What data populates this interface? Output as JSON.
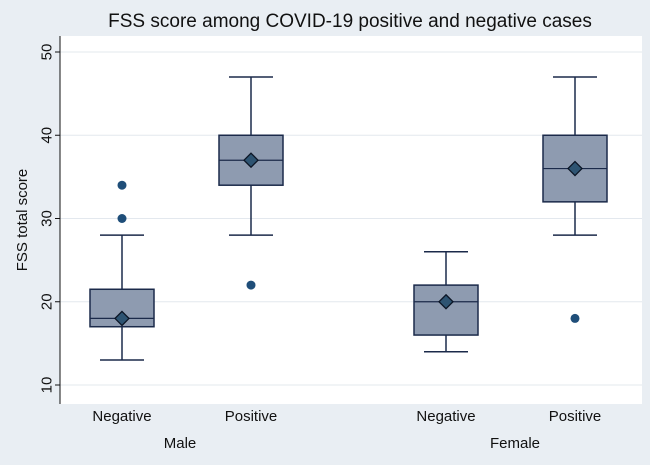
{
  "chart_data": {
    "type": "box",
    "title": "FSS score among COVID-19 positive and negative cases",
    "ylabel": "FSS total score",
    "xlabel": "",
    "ylim": [
      10,
      50
    ],
    "yticks": [
      10,
      20,
      30,
      40,
      50
    ],
    "grid": true,
    "groups": [
      {
        "name": "Male",
        "boxes": [
          {
            "label": "Negative",
            "whisker_low": 13,
            "q1": 17,
            "median": 18,
            "q3": 21.5,
            "whisker_high": 28,
            "mean": 18,
            "outliers": [
              30,
              34
            ]
          },
          {
            "label": "Positive",
            "whisker_low": 28,
            "q1": 34,
            "median": 37,
            "q3": 40,
            "whisker_high": 47,
            "mean": 37,
            "outliers": [
              22
            ]
          }
        ]
      },
      {
        "name": "Female",
        "boxes": [
          {
            "label": "Negative",
            "whisker_low": 14,
            "q1": 16,
            "median": 20,
            "q3": 22,
            "whisker_high": 26,
            "mean": 20,
            "outliers": []
          },
          {
            "label": "Positive",
            "whisker_low": 28,
            "q1": 32,
            "median": 36,
            "q3": 40,
            "whisker_high": 47,
            "mean": 36,
            "outliers": [
              18
            ]
          }
        ]
      }
    ]
  },
  "colors": {
    "background": "#e9eef3",
    "plot_background": "#ffffff",
    "box_fill": "#8e9bb0",
    "box_stroke": "#1b2a4a",
    "mean_marker": "#2e5472",
    "outlier": "#1f4e79",
    "grid": "#e3e8ee",
    "axis": "#111111"
  }
}
